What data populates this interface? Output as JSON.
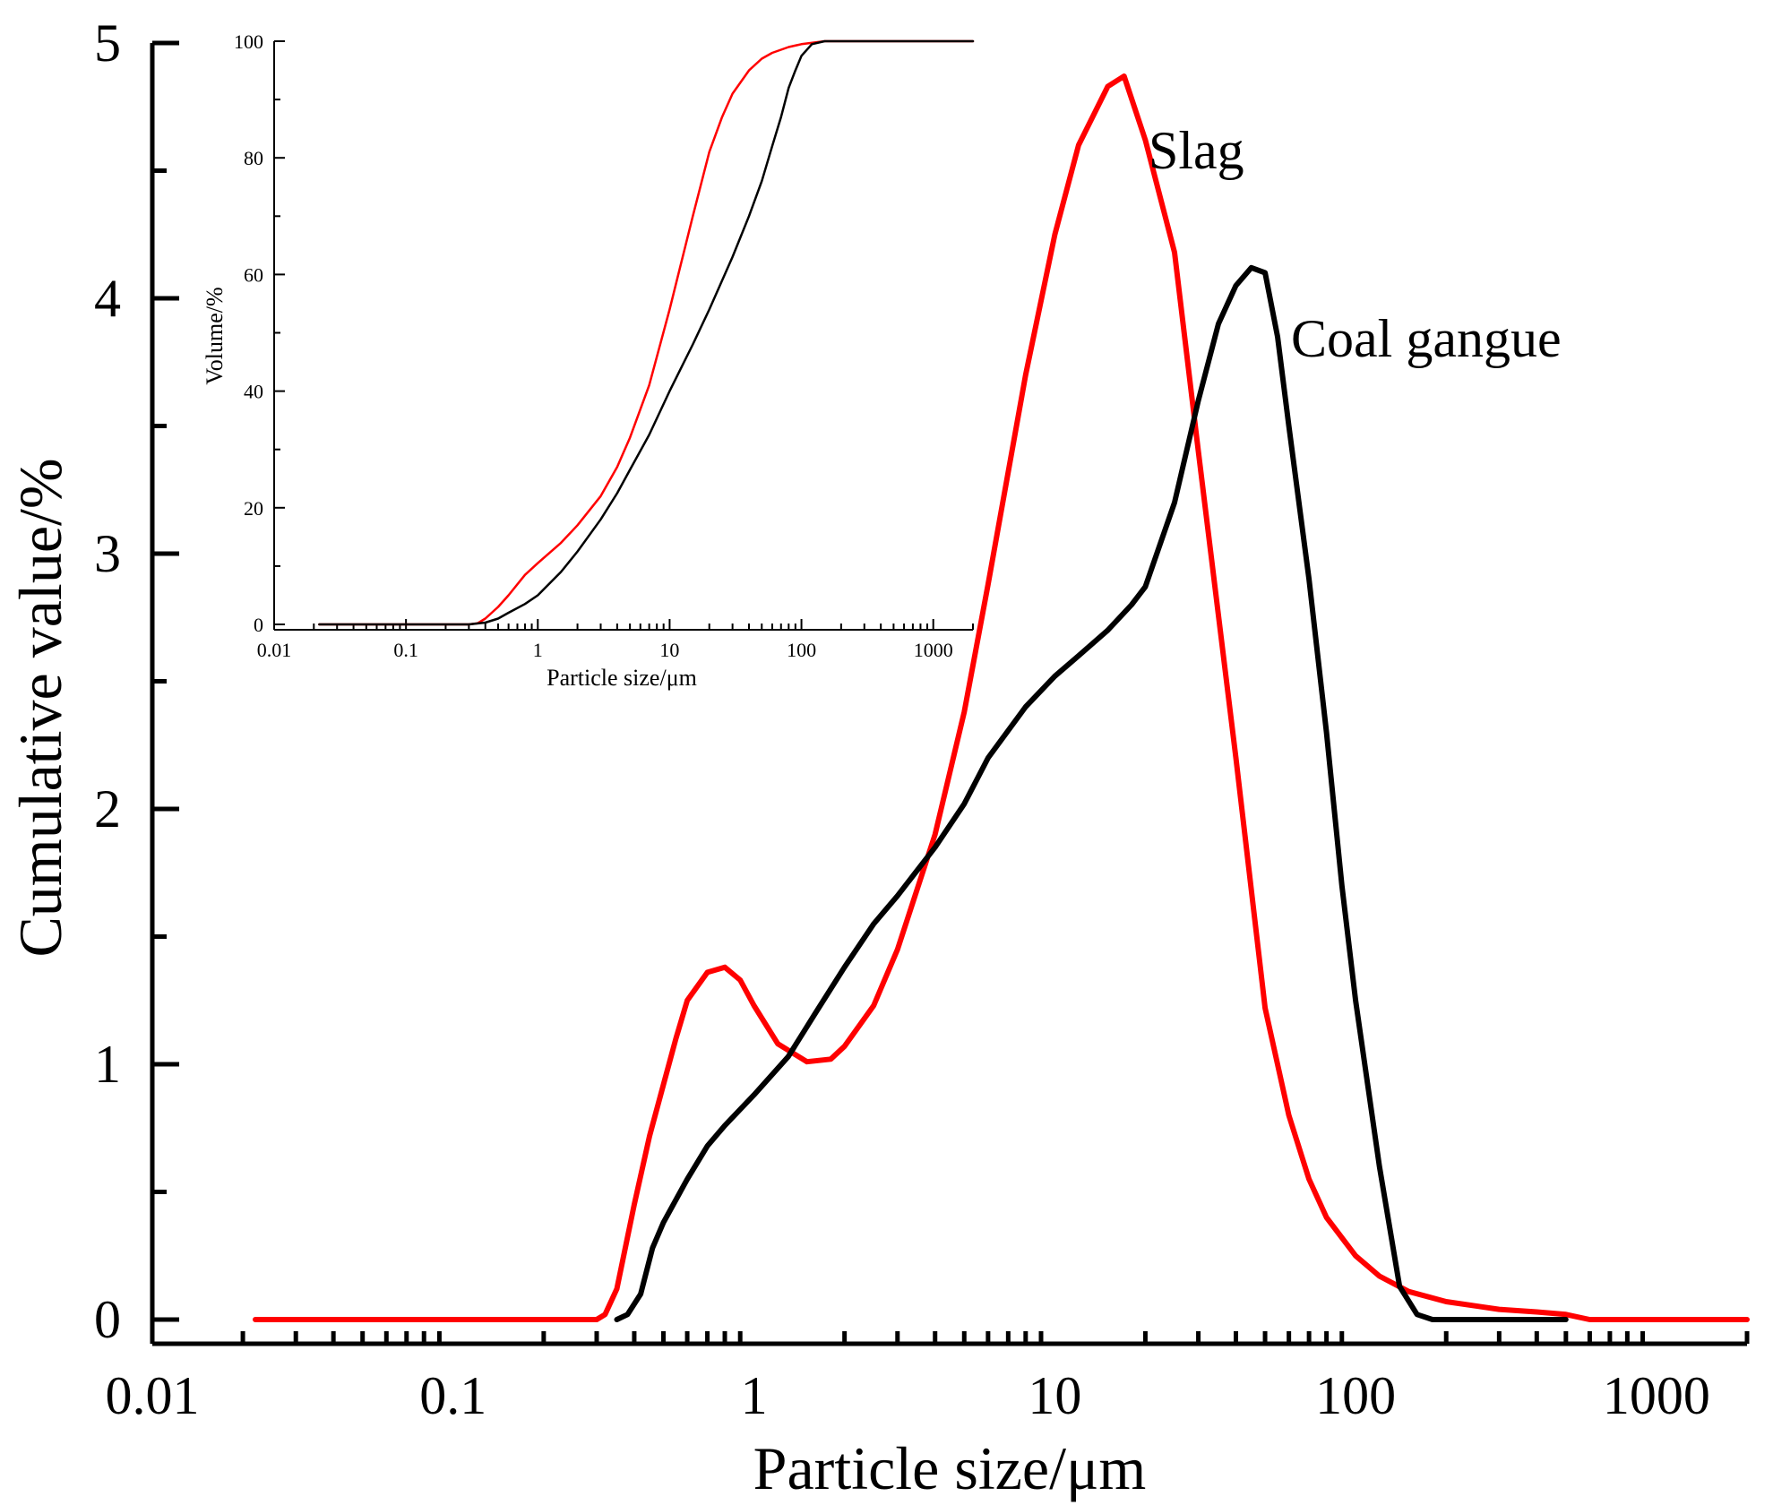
{
  "chart_data": [
    {
      "id": "main",
      "type": "line",
      "xscale": "log",
      "xlim": [
        0.01,
        2000
      ],
      "ylim": [
        0,
        5
      ],
      "xlabel": "Particle size/μm",
      "ylabel": "Cumulative value/%",
      "xticks": [
        {
          "value": 0.01,
          "label": "0.01"
        },
        {
          "value": 0.1,
          "label": "0.1"
        },
        {
          "value": 1,
          "label": "1"
        },
        {
          "value": 10,
          "label": "10"
        },
        {
          "value": 100,
          "label": "100"
        },
        {
          "value": 1000,
          "label": "1000"
        }
      ],
      "yticks": [
        {
          "value": 0,
          "label": "0"
        },
        {
          "value": 1,
          "label": "1"
        },
        {
          "value": 2,
          "label": "2"
        },
        {
          "value": 3,
          "label": "3"
        },
        {
          "value": 4,
          "label": "4"
        },
        {
          "value": 5,
          "label": "5"
        }
      ],
      "series": [
        {
          "name": "Slag",
          "label": "Slag",
          "color": "#ff0000",
          "x": [
            0.022,
            0.1,
            0.2,
            0.3,
            0.32,
            0.35,
            0.4,
            0.45,
            0.5,
            0.55,
            0.6,
            0.7,
            0.8,
            0.9,
            1.0,
            1.2,
            1.5,
            1.8,
            2.0,
            2.5,
            3.0,
            4.0,
            5.0,
            6.0,
            8.0,
            10.0,
            12.0,
            15.0,
            17.0,
            20.0,
            25.0,
            30.0,
            40.0,
            50.0,
            60.0,
            70.0,
            80.0,
            100.0,
            120.0,
            150.0,
            200.0,
            300.0,
            400.0,
            500.0,
            600.0,
            1000.0,
            2000.0
          ],
          "values": [
            0,
            0,
            0,
            0,
            0.02,
            0.12,
            0.45,
            0.72,
            0.92,
            1.1,
            1.25,
            1.36,
            1.38,
            1.33,
            1.23,
            1.08,
            1.01,
            1.02,
            1.07,
            1.23,
            1.45,
            1.9,
            2.38,
            2.88,
            3.7,
            4.25,
            4.6,
            4.83,
            4.87,
            4.62,
            4.18,
            3.4,
            2.2,
            1.22,
            0.8,
            0.55,
            0.4,
            0.25,
            0.17,
            0.11,
            0.07,
            0.04,
            0.03,
            0.02,
            0,
            0,
            0
          ]
        },
        {
          "name": "Coal gangue",
          "label": "Coal gangue",
          "color": "#000000",
          "x": [
            0.35,
            0.38,
            0.42,
            0.46,
            0.5,
            0.6,
            0.7,
            0.8,
            1.0,
            1.3,
            1.6,
            2.0,
            2.5,
            3.0,
            4.0,
            5.0,
            6.0,
            8.0,
            10.0,
            12.0,
            15.0,
            18.0,
            20.0,
            25.0,
            30.0,
            35.0,
            40.0,
            45.0,
            50.0,
            55.0,
            60.0,
            70.0,
            80.0,
            90.0,
            100.0,
            120.0,
            140.0,
            160.0,
            180.0,
            200.0,
            500.0
          ],
          "values": [
            0,
            0.02,
            0.1,
            0.28,
            0.38,
            0.55,
            0.68,
            0.76,
            0.88,
            1.03,
            1.2,
            1.38,
            1.55,
            1.66,
            1.85,
            2.02,
            2.2,
            2.4,
            2.52,
            2.6,
            2.7,
            2.8,
            2.87,
            3.2,
            3.6,
            3.9,
            4.05,
            4.12,
            4.1,
            3.85,
            3.5,
            2.9,
            2.3,
            1.7,
            1.25,
            0.6,
            0.13,
            0.02,
            0,
            0,
            0
          ]
        }
      ]
    },
    {
      "id": "inset",
      "type": "line",
      "xscale": "log",
      "xlim": [
        0.01,
        2000
      ],
      "ylim": [
        0,
        100
      ],
      "xlabel": "Particle size/μm",
      "ylabel": "Volume/%",
      "xticks": [
        {
          "value": 0.01,
          "label": "0.01"
        },
        {
          "value": 0.1,
          "label": "0.1"
        },
        {
          "value": 1,
          "label": "1"
        },
        {
          "value": 10,
          "label": "10"
        },
        {
          "value": 100,
          "label": "100"
        },
        {
          "value": 1000,
          "label": "1000"
        }
      ],
      "yticks": [
        {
          "value": 0,
          "label": "0"
        },
        {
          "value": 20,
          "label": "20"
        },
        {
          "value": 40,
          "label": "40"
        },
        {
          "value": 60,
          "label": "60"
        },
        {
          "value": 80,
          "label": "80"
        },
        {
          "value": 100,
          "label": "100"
        }
      ],
      "series": [
        {
          "name": "Slag",
          "color": "#ff0000",
          "x": [
            0.022,
            0.1,
            0.3,
            0.35,
            0.4,
            0.5,
            0.6,
            0.8,
            1.0,
            1.5,
            2.0,
            3.0,
            4.0,
            5.0,
            7.0,
            10.0,
            15.0,
            20.0,
            25.0,
            30.0,
            40.0,
            50.0,
            60.0,
            80.0,
            100.0,
            150.0,
            200.0,
            2000.0
          ],
          "values": [
            0,
            0,
            0,
            0.2,
            1,
            3,
            5,
            8.5,
            10.5,
            14,
            17,
            22,
            27,
            32,
            41,
            54,
            70,
            81,
            87,
            91,
            95,
            97,
            98,
            99,
            99.5,
            100,
            100,
            100
          ]
        },
        {
          "name": "Coal gangue",
          "color": "#000000",
          "x": [
            0.022,
            0.1,
            0.3,
            0.4,
            0.5,
            0.6,
            0.8,
            1.0,
            1.5,
            2.0,
            3.0,
            4.0,
            5.0,
            7.0,
            10.0,
            15.0,
            20.0,
            30.0,
            40.0,
            50.0,
            60.0,
            70.0,
            80.0,
            90.0,
            100.0,
            120.0,
            150.0,
            200.0,
            2000.0
          ],
          "values": [
            0,
            0,
            0,
            0.3,
            1,
            2,
            3.5,
            5,
            9,
            12.5,
            18,
            22.5,
            26.5,
            32.5,
            40,
            48,
            54,
            63,
            70,
            76,
            82,
            87,
            92,
            95,
            97.5,
            99.5,
            100,
            100,
            100
          ]
        }
      ]
    }
  ]
}
